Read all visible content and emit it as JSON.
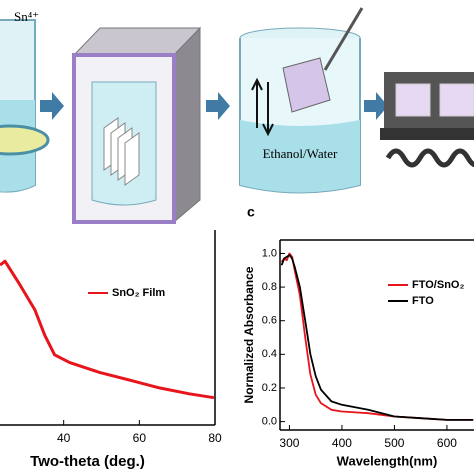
{
  "diagram": {
    "ion_label": "Sn⁴⁺",
    "solvent_label": "Ethanol/Water"
  },
  "panel_label": "c",
  "chart_data": [
    {
      "type": "line",
      "xlabel": "Two-theta (deg.)",
      "xlim": [
        20,
        80
      ],
      "xticks": [
        40,
        60,
        80
      ],
      "ylim": [
        0,
        1
      ],
      "legend": "upper right",
      "series": [
        {
          "name": "SnO₂ Film",
          "color": "#e8141c",
          "x": [
            23.2,
            24.5,
            28.4,
            32.4,
            35,
            37.6,
            41.6,
            49.5,
            57.4,
            65.3,
            73.2,
            79.7
          ],
          "values": [
            0.82,
            0.84,
            0.72,
            0.59,
            0.46,
            0.36,
            0.32,
            0.27,
            0.23,
            0.19,
            0.16,
            0.14
          ]
        }
      ]
    },
    {
      "type": "line",
      "xlabel": "Wavelength(nm)",
      "ylabel": "Normalized Absorbance",
      "xlim": [
        282,
        663
      ],
      "xticks": [
        300,
        400,
        500,
        600
      ],
      "ylim": [
        -0.05,
        1.08
      ],
      "yticks": [
        {
          "value": 0,
          "label": "0.0"
        },
        {
          "value": 0.2,
          "label": "0.2"
        },
        {
          "value": 0.4,
          "label": "0.4"
        },
        {
          "value": 0.6,
          "label": "0.6"
        },
        {
          "value": 0.8,
          "label": "0.8"
        },
        {
          "value": 1,
          "label": "1.0"
        }
      ],
      "legend": "upper right",
      "series": [
        {
          "name": "FTO/SnO₂",
          "color": "#e8141c",
          "x": [
            285,
            290,
            295,
            300,
            305,
            310,
            320,
            330,
            340,
            350,
            360,
            380,
            400,
            450,
            500,
            550,
            600,
            650
          ],
          "values": [
            0.95,
            0.97,
            0.96,
            1.0,
            0.98,
            0.9,
            0.75,
            0.5,
            0.28,
            0.16,
            0.11,
            0.07,
            0.06,
            0.05,
            0.03,
            0.02,
            0.01,
            0.01
          ]
        },
        {
          "name": "FTO",
          "color": "#000000",
          "x": [
            285,
            290,
            300,
            305,
            310,
            320,
            330,
            340,
            350,
            360,
            380,
            400,
            450,
            500,
            550,
            600,
            650
          ],
          "values": [
            0.93,
            0.97,
            0.99,
            0.97,
            0.92,
            0.8,
            0.6,
            0.4,
            0.27,
            0.19,
            0.12,
            0.1,
            0.07,
            0.03,
            0.02,
            0.01,
            0.01
          ]
        }
      ]
    }
  ]
}
